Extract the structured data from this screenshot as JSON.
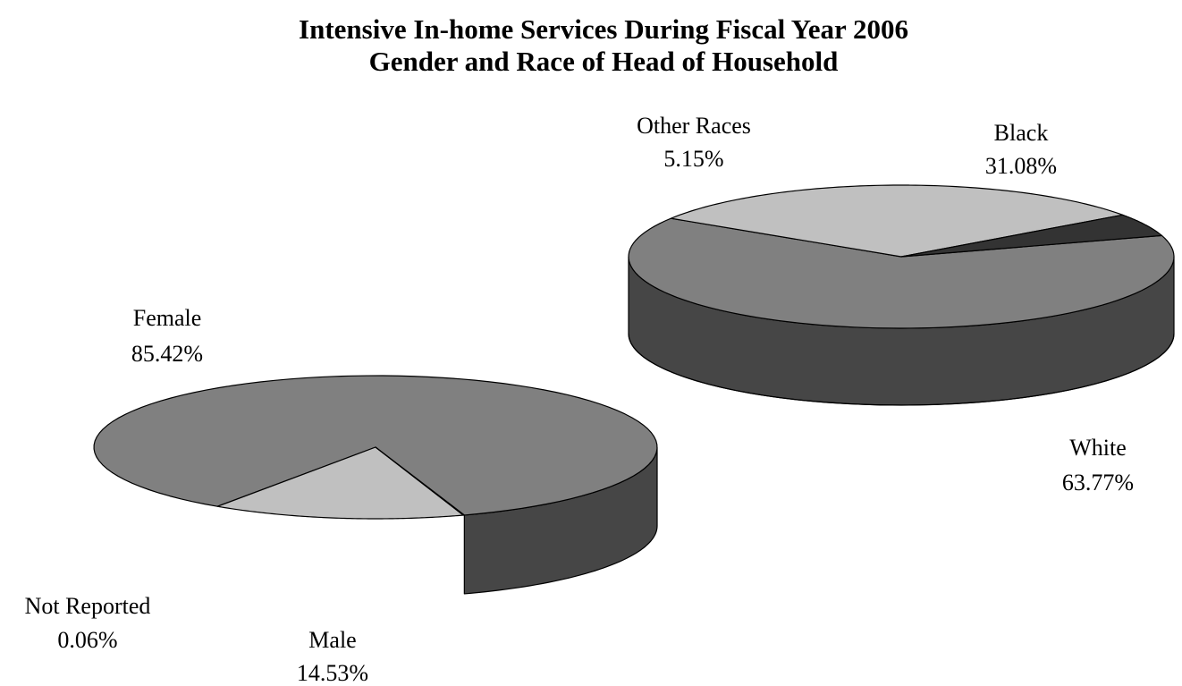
{
  "chart_data": [
    {
      "type": "pie",
      "title": "Intensive In-home Services During Fiscal Year 2006",
      "subtitle": "Gender and Race of Head of Household",
      "slices": [
        {
          "label": "Female",
          "value": 85.42,
          "value_label": "85.42%",
          "color": "#808080"
        },
        {
          "label": "Male",
          "value": 14.53,
          "value_label": "14.53%",
          "color": "#c0c0c0"
        },
        {
          "label": "Not Reported",
          "value": 0.06,
          "value_label": "0.06%",
          "color": "#404040"
        }
      ],
      "three_d": true,
      "legend": "none"
    },
    {
      "type": "pie",
      "slices": [
        {
          "label": "White",
          "value": 63.77,
          "value_label": "63.77%",
          "color": "#808080"
        },
        {
          "label": "Black",
          "value": 31.08,
          "value_label": "31.08%",
          "color": "#c0c0c0"
        },
        {
          "label": "Other Races",
          "value": 5.15,
          "value_label": "5.15%",
          "color": "#333333"
        }
      ],
      "three_d": true,
      "legend": "none"
    }
  ]
}
